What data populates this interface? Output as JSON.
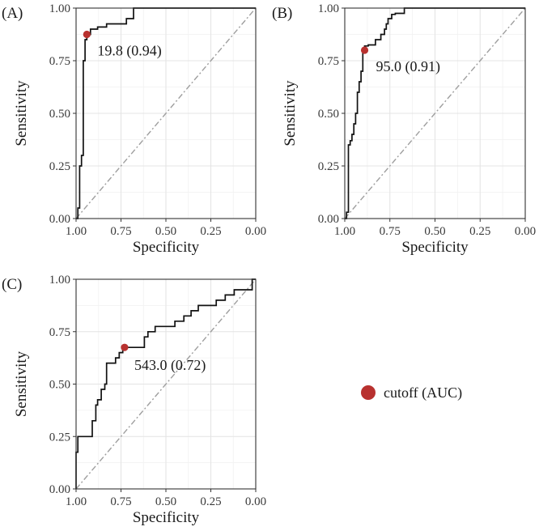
{
  "figure": {
    "legend": {
      "label": "cutoff (AUC)",
      "marker_color": "#B8312F"
    }
  },
  "chart_data": [
    {
      "type": "line",
      "panel_label": "(A)",
      "xlabel": "Specificity",
      "ylabel": "Sensitivity",
      "xlim": [
        1.0,
        0.0
      ],
      "ylim": [
        0.0,
        1.0
      ],
      "x_ticks": [
        "1.00",
        "0.75",
        "0.50",
        "0.25",
        "0.00"
      ],
      "y_ticks": [
        "0.00",
        "0.25",
        "0.50",
        "0.75",
        "1.00"
      ],
      "curve_color": "#111111",
      "diagonal_color": "#9e9e9e",
      "roc": {
        "specificity": [
          1.0,
          0.99,
          0.99,
          0.98,
          0.98,
          0.97,
          0.97,
          0.96,
          0.96,
          0.95,
          0.95,
          0.94,
          0.94,
          0.92,
          0.92,
          0.88,
          0.88,
          0.83,
          0.83,
          0.78,
          0.78,
          0.72,
          0.72,
          0.68,
          0.68,
          0.0
        ],
        "sensitivity": [
          0.0,
          0.0,
          0.05,
          0.05,
          0.25,
          0.25,
          0.3,
          0.3,
          0.75,
          0.75,
          0.85,
          0.85,
          0.875,
          0.875,
          0.9,
          0.9,
          0.91,
          0.91,
          0.925,
          0.925,
          0.925,
          0.925,
          0.95,
          0.95,
          1.0,
          1.0
        ]
      },
      "cutoff": {
        "specificity": 0.94,
        "sensitivity": 0.875,
        "label": "19.8 (0.94)"
      }
    },
    {
      "type": "line",
      "panel_label": "(B)",
      "xlabel": "Specificity",
      "ylabel": "Sensitivity",
      "xlim": [
        1.0,
        0.0
      ],
      "ylim": [
        0.0,
        1.0
      ],
      "x_ticks": [
        "1.00",
        "0.75",
        "0.50",
        "0.25",
        "0.00"
      ],
      "y_ticks": [
        "0.00",
        "0.25",
        "0.50",
        "0.75",
        "1.00"
      ],
      "curve_color": "#111111",
      "diagonal_color": "#9e9e9e",
      "roc": {
        "specificity": [
          1.0,
          0.99,
          0.99,
          0.98,
          0.98,
          0.97,
          0.97,
          0.96,
          0.96,
          0.95,
          0.95,
          0.94,
          0.94,
          0.93,
          0.93,
          0.92,
          0.92,
          0.91,
          0.91,
          0.9,
          0.9,
          0.89,
          0.89,
          0.87,
          0.87,
          0.83,
          0.83,
          0.8,
          0.8,
          0.78,
          0.78,
          0.77,
          0.77,
          0.76,
          0.76,
          0.74,
          0.74,
          0.72,
          0.72,
          0.7,
          0.7,
          0.67,
          0.67,
          0.0
        ],
        "sensitivity": [
          0.0,
          0.0,
          0.03,
          0.03,
          0.35,
          0.35,
          0.37,
          0.37,
          0.4,
          0.4,
          0.45,
          0.45,
          0.5,
          0.5,
          0.6,
          0.6,
          0.65,
          0.65,
          0.7,
          0.7,
          0.8,
          0.8,
          0.82,
          0.82,
          0.825,
          0.825,
          0.85,
          0.85,
          0.875,
          0.875,
          0.9,
          0.9,
          0.925,
          0.925,
          0.95,
          0.95,
          0.97,
          0.97,
          0.975,
          0.975,
          0.975,
          0.975,
          1.0,
          1.0
        ]
      },
      "cutoff": {
        "specificity": 0.89,
        "sensitivity": 0.8,
        "label": "95.0 (0.91)"
      }
    },
    {
      "type": "line",
      "panel_label": "(C)",
      "xlabel": "Specificity",
      "ylabel": "Sensitivity",
      "xlim": [
        1.0,
        0.0
      ],
      "ylim": [
        0.0,
        1.0
      ],
      "x_ticks": [
        "1.00",
        "0.75",
        "0.50",
        "0.25",
        "0.00"
      ],
      "y_ticks": [
        "0.00",
        "0.25",
        "0.50",
        "0.75",
        "1.00"
      ],
      "curve_color": "#111111",
      "diagonal_color": "#9e9e9e",
      "roc": {
        "specificity": [
          1.0,
          1.0,
          0.99,
          0.99,
          0.97,
          0.97,
          0.91,
          0.91,
          0.89,
          0.89,
          0.88,
          0.88,
          0.86,
          0.86,
          0.84,
          0.84,
          0.83,
          0.83,
          0.81,
          0.81,
          0.78,
          0.78,
          0.76,
          0.76,
          0.74,
          0.74,
          0.73,
          0.73,
          0.62,
          0.62,
          0.6,
          0.6,
          0.56,
          0.56,
          0.53,
          0.53,
          0.45,
          0.45,
          0.4,
          0.4,
          0.36,
          0.36,
          0.32,
          0.32,
          0.28,
          0.28,
          0.22,
          0.22,
          0.17,
          0.17,
          0.12,
          0.12,
          0.07,
          0.07,
          0.02,
          0.02,
          0.0,
          0.0
        ],
        "sensitivity": [
          0.0,
          0.175,
          0.175,
          0.25,
          0.25,
          0.25,
          0.25,
          0.325,
          0.325,
          0.4,
          0.4,
          0.425,
          0.425,
          0.475,
          0.475,
          0.5,
          0.5,
          0.6,
          0.6,
          0.6,
          0.6,
          0.625,
          0.625,
          0.65,
          0.65,
          0.675,
          0.675,
          0.675,
          0.675,
          0.725,
          0.725,
          0.75,
          0.75,
          0.775,
          0.775,
          0.775,
          0.775,
          0.8,
          0.8,
          0.825,
          0.825,
          0.85,
          0.85,
          0.875,
          0.875,
          0.875,
          0.875,
          0.9,
          0.9,
          0.925,
          0.925,
          0.95,
          0.95,
          0.95,
          0.95,
          1.0,
          1.0,
          1.0
        ]
      },
      "cutoff": {
        "specificity": 0.73,
        "sensitivity": 0.675,
        "label": "543.0 (0.72)"
      }
    }
  ]
}
